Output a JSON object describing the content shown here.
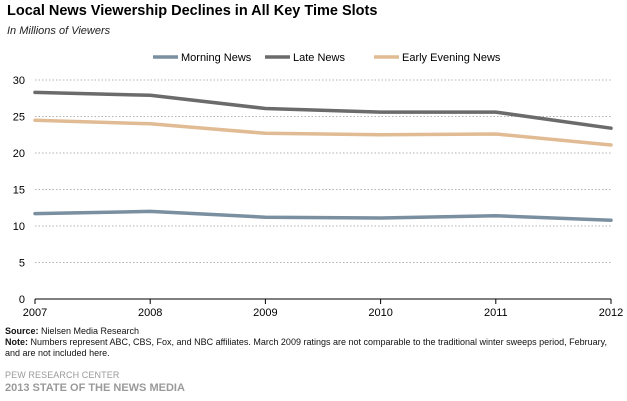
{
  "chart_data": {
    "type": "line",
    "title": "Local News Viewership Declines in All Key Time Slots",
    "subtitle": "In Millions of Viewers",
    "x": [
      "2007",
      "2008",
      "2009",
      "2010",
      "2011",
      "2012"
    ],
    "yticks": [
      "0",
      "5",
      "10",
      "15",
      "20",
      "25",
      "30"
    ],
    "ylim": [
      0,
      30
    ],
    "grid": true,
    "legend_position": "top-center",
    "series": [
      {
        "name": "Morning News",
        "color": "#7a8fa0",
        "values": [
          11.7,
          12.0,
          11.2,
          11.1,
          11.4,
          10.8
        ]
      },
      {
        "name": "Late News",
        "color": "#6b6b6b",
        "values": [
          28.3,
          27.9,
          26.1,
          25.6,
          25.6,
          23.4
        ]
      },
      {
        "name": "Early Evening News",
        "color": "#e1bb94",
        "values": [
          24.5,
          24.0,
          22.7,
          22.5,
          22.6,
          21.1
        ]
      }
    ]
  },
  "footer": {
    "source_label": "Source:",
    "source_text": " Nielsen Media Research",
    "note_label": "Note:",
    "note_text": " Numbers represent ABC, CBS, Fox, and NBC affiliates. March 2009 ratings are not comparable to the traditional winter sweeps period, February, and are not included here.",
    "organization": "PEW RESEARCH CENTER",
    "report": "2013 STATE OF THE NEWS MEDIA"
  }
}
